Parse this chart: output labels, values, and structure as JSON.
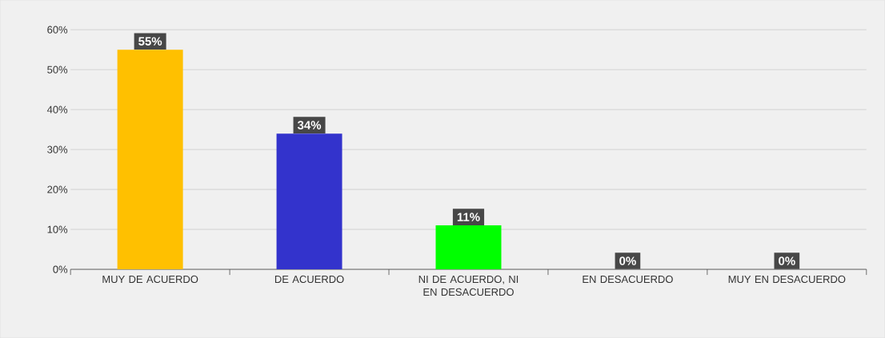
{
  "chart_data": {
    "type": "bar",
    "categories": [
      "MUY DE ACUERDO",
      "DE ACUERDO",
      "NI DE ACUERDO, NI EN DESACUERDO",
      "EN DESACUERDO",
      "MUY EN DESACUERDO"
    ],
    "values": [
      55,
      34,
      11,
      0,
      0
    ],
    "colors": [
      "#ffc000",
      "#3333cc",
      "#00ff00",
      "#a5a5a5",
      "#4472c4"
    ],
    "value_labels": [
      "55%",
      "34%",
      "11%",
      "0%",
      "0%"
    ],
    "ylim": [
      0,
      60
    ],
    "yticks": [
      {
        "value": 0,
        "label": "0%"
      },
      {
        "value": 10,
        "label": "10%"
      },
      {
        "value": 20,
        "label": "20%"
      },
      {
        "value": 30,
        "label": "30%"
      },
      {
        "value": 40,
        "label": "40%"
      },
      {
        "value": 50,
        "label": "50%"
      },
      {
        "value": 60,
        "label": "60%"
      }
    ],
    "grid": "y"
  }
}
